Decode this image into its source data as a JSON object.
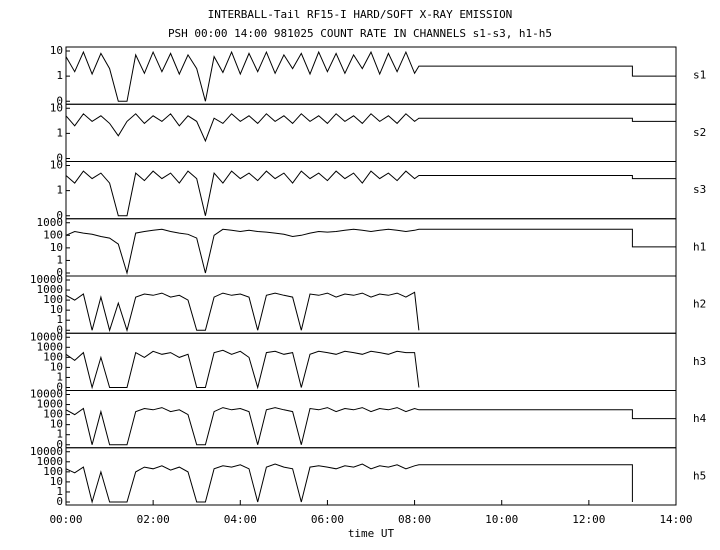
{
  "chart_data": {
    "type": "line",
    "title": "INTERBALL-Tail RF15-I HARD/SOFT X-RAY EMISSION",
    "subtitle": "PSH 00:00 14:00 981025  COUNT RATE IN CHANNELS s1-s3, h1-h5",
    "xlabel": "time UT",
    "yscale": "log",
    "xlim": [
      0,
      14
    ],
    "xticks": [
      {
        "value": 0,
        "label": "00:00"
      },
      {
        "value": 2,
        "label": "02:00"
      },
      {
        "value": 4,
        "label": "04:00"
      },
      {
        "value": 6,
        "label": "06:00"
      },
      {
        "value": 8,
        "label": "08:00"
      },
      {
        "value": 10,
        "label": "10:00"
      },
      {
        "value": 12,
        "label": "12:00"
      },
      {
        "value": 14,
        "label": "14:00"
      }
    ],
    "x": [
      0,
      0.2,
      0.4,
      0.6,
      0.8,
      1.0,
      1.2,
      1.4,
      1.6,
      1.8,
      2.0,
      2.2,
      2.4,
      2.6,
      2.8,
      3.0,
      3.2,
      3.4,
      3.6,
      3.8,
      4.0,
      4.2,
      4.4,
      4.6,
      4.8,
      5.0,
      5.2,
      5.4,
      5.6,
      5.8,
      6.0,
      6.2,
      6.4,
      6.6,
      6.8,
      7.0,
      7.2,
      7.4,
      7.6,
      7.8,
      8.0,
      8.1,
      13,
      13,
      14
    ],
    "series": [
      {
        "name": "s1",
        "color": "#000000",
        "ylim": [
          0,
          10
        ],
        "yticks": [
          0,
          1,
          10
        ],
        "values": [
          6,
          1.5,
          9,
          1.2,
          8,
          2,
          0,
          0,
          7,
          1.3,
          9,
          1.5,
          8,
          1.2,
          7,
          2,
          0,
          6,
          1.4,
          9,
          1.2,
          8,
          1.5,
          9,
          1.3,
          7,
          2,
          8,
          1.2,
          9,
          1.5,
          8,
          1.3,
          7,
          2,
          9,
          1.2,
          8,
          1.5,
          9,
          1.3,
          2.5,
          2.5,
          1,
          1
        ]
      },
      {
        "name": "s2",
        "color": "#000000",
        "ylim": [
          0,
          10
        ],
        "yticks": [
          0,
          1,
          10
        ],
        "values": [
          5,
          2,
          6,
          3,
          5,
          2.5,
          0.8,
          3,
          6,
          2.5,
          5,
          3,
          6,
          2,
          5,
          3,
          0.5,
          4,
          2.5,
          6,
          3,
          5,
          2.5,
          6,
          3,
          5,
          2.5,
          6,
          3,
          5,
          2.5,
          6,
          3,
          5,
          2.5,
          6,
          3,
          5,
          2.5,
          6,
          3,
          4,
          4,
          3,
          3
        ]
      },
      {
        "name": "s3",
        "color": "#000000",
        "ylim": [
          0,
          10
        ],
        "yticks": [
          0,
          1,
          10
        ],
        "values": [
          4,
          2,
          6,
          3,
          5,
          2,
          0,
          0,
          5,
          2.5,
          6,
          3,
          5,
          2,
          6,
          3,
          0,
          5,
          2,
          6,
          3,
          5,
          2.5,
          6,
          3,
          5,
          2,
          6,
          3,
          5,
          2.5,
          6,
          3,
          5,
          2,
          6,
          3,
          5,
          2.5,
          6,
          3,
          4,
          4,
          3,
          3
        ]
      },
      {
        "name": "h1",
        "color": "#000000",
        "ylim": [
          0,
          1000
        ],
        "yticks": [
          0,
          1,
          10,
          100,
          1000
        ],
        "values": [
          100,
          200,
          150,
          120,
          80,
          60,
          20,
          0,
          150,
          200,
          250,
          300,
          200,
          150,
          120,
          60,
          0,
          100,
          300,
          250,
          200,
          250,
          200,
          180,
          150,
          120,
          80,
          100,
          150,
          200,
          180,
          200,
          250,
          300,
          250,
          200,
          250,
          300,
          250,
          200,
          250,
          300,
          300,
          12,
          12
        ]
      },
      {
        "name": "h2",
        "color": "#000000",
        "ylim": [
          0,
          10000
        ],
        "yticks": [
          0,
          1,
          10,
          100,
          1000,
          10000
        ],
        "values": [
          300,
          100,
          400,
          0,
          200,
          0,
          50,
          0,
          200,
          400,
          300,
          500,
          200,
          300,
          100,
          0,
          0,
          200,
          500,
          300,
          400,
          200,
          0,
          300,
          500,
          300,
          200,
          0,
          400,
          300,
          500,
          200,
          400,
          300,
          500,
          200,
          400,
          300,
          500,
          200,
          600,
          0,
          null,
          null,
          null
        ]
      },
      {
        "name": "h3",
        "color": "#000000",
        "ylim": [
          0,
          10000
        ],
        "yticks": [
          0,
          1,
          10,
          100,
          1000,
          10000
        ],
        "values": [
          200,
          50,
          300,
          0,
          100,
          0,
          0,
          0,
          300,
          100,
          400,
          200,
          300,
          100,
          200,
          0,
          0,
          300,
          500,
          200,
          400,
          100,
          0,
          300,
          400,
          200,
          300,
          0,
          200,
          400,
          300,
          200,
          400,
          300,
          200,
          400,
          300,
          200,
          400,
          300,
          300,
          0,
          null,
          null,
          null
        ]
      },
      {
        "name": "h4",
        "color": "#000000",
        "ylim": [
          0,
          10000
        ],
        "yticks": [
          0,
          1,
          10,
          100,
          1000,
          10000
        ],
        "values": [
          300,
          100,
          400,
          0,
          200,
          0,
          0,
          0,
          200,
          400,
          300,
          500,
          200,
          300,
          100,
          0,
          0,
          200,
          500,
          300,
          400,
          200,
          0,
          300,
          500,
          300,
          200,
          0,
          400,
          300,
          500,
          200,
          400,
          300,
          500,
          200,
          400,
          300,
          500,
          200,
          400,
          300,
          300,
          40,
          40
        ]
      },
      {
        "name": "h5",
        "color": "#000000",
        "ylim": [
          0,
          10000
        ],
        "yticks": [
          0,
          1,
          10,
          100,
          1000,
          10000
        ],
        "values": [
          200,
          80,
          300,
          0,
          100,
          0,
          0,
          0,
          100,
          300,
          200,
          400,
          150,
          300,
          100,
          0,
          0,
          200,
          400,
          300,
          500,
          200,
          0,
          300,
          600,
          300,
          200,
          0,
          300,
          400,
          300,
          200,
          400,
          300,
          600,
          200,
          400,
          300,
          500,
          200,
          400,
          500,
          500,
          0,
          null
        ]
      }
    ]
  }
}
